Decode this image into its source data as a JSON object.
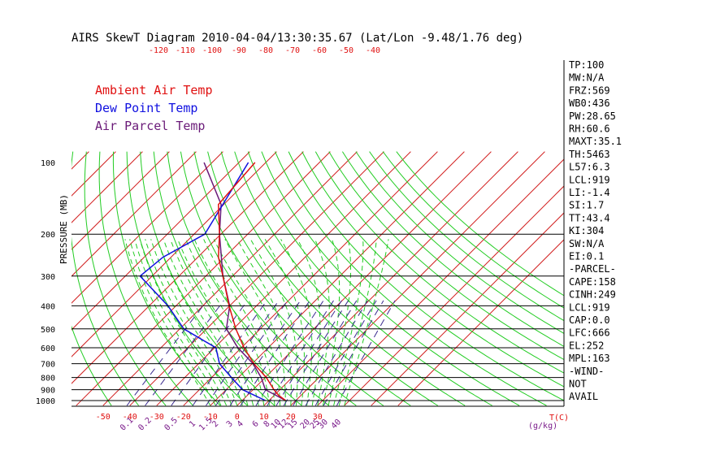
{
  "chart_data": {
    "type": "line",
    "title": "AIRS SkewT Diagram 2010-04-04/13:30:35.67 (Lat/Lon -9.48/1.76 deg)",
    "ylabel": "PRESSURE (MB)",
    "x_unit_label": "T(C)",
    "mixing_ratio_unit_label": "(g/kg)",
    "pressure_ticks": [
      "100",
      "200",
      "300",
      "400",
      "500",
      "600",
      "700",
      "800",
      "900",
      "1000"
    ],
    "pressure_lines": [
      200,
      300,
      400,
      500,
      600,
      700,
      800,
      900,
      1000
    ],
    "top_temp_ticks": [
      "-120",
      "-110",
      "-100",
      "-90",
      "-80",
      "-70",
      "-60",
      "-50",
      "-40"
    ],
    "bottom_temp_ticks": [
      "-50",
      "-40",
      "-30",
      "-20",
      "-10",
      "0",
      "10",
      "20",
      "30"
    ],
    "mixing_ratio_ticks": [
      "0.1",
      "0.2",
      "0.5",
      "1",
      "1.5",
      "2",
      "3",
      "4",
      "6",
      "8",
      "10",
      "12",
      "15",
      "20",
      "25",
      "30",
      "40"
    ],
    "colors": {
      "isotherm": "#d22020",
      "dry_adiabat": "#22cc22",
      "moist_adiabat": "#22cc22",
      "mixing_ratio": "#3a2a90",
      "temperature": "#e01010",
      "dewpoint": "#1010e0",
      "parcel": "#6a1a78",
      "tick_text": "#e01010",
      "mixing_text": "#7a1a8a"
    },
    "series": [
      {
        "name": "Ambient Air Temp",
        "points": [
          [
            -84.0,
            100
          ],
          [
            -82.0,
            150
          ],
          [
            -70.5,
            200
          ],
          [
            -62.3,
            250
          ],
          [
            -53.6,
            300
          ],
          [
            -40.2,
            400
          ],
          [
            -29.1,
            500
          ],
          [
            -19.0,
            600
          ],
          [
            -9.4,
            700
          ],
          [
            0.4,
            800
          ],
          [
            7.8,
            900
          ],
          [
            11.6,
            950
          ],
          [
            16.2,
            1000
          ]
        ]
      },
      {
        "name": "Dew Point Temp",
        "points": [
          [
            -86.5,
            100
          ],
          [
            -76.0,
            200
          ],
          [
            -83.0,
            250
          ],
          [
            -84.5,
            300
          ],
          [
            -63.0,
            400
          ],
          [
            -48.5,
            500
          ],
          [
            -29.5,
            600
          ],
          [
            -22.2,
            700
          ],
          [
            -12.6,
            800
          ],
          [
            -3.9,
            900
          ],
          [
            8.7,
            1000
          ]
        ]
      },
      {
        "name": "Air Parcel Temp",
        "points": [
          [
            -103.0,
            100
          ],
          [
            -81.0,
            150
          ],
          [
            -70.5,
            200
          ],
          [
            -53.6,
            300
          ],
          [
            -40.0,
            400
          ],
          [
            -32.6,
            500
          ],
          [
            -21.3,
            600
          ],
          [
            -9.7,
            700
          ],
          [
            -1.5,
            800
          ],
          [
            4.6,
            900
          ],
          [
            16.2,
            1000
          ]
        ]
      }
    ],
    "indices": [
      "TP:100",
      "MW:N/A",
      "FRZ:569",
      "WB0:436",
      "PW:28.65",
      "RH:60.6",
      "MAXT:35.1",
      "TH:5463",
      "L57:6.3",
      "LCL:919",
      "LI:-1.4",
      "SI:1.7",
      "TT:43.4",
      "KI:304",
      "SW:N/A",
      "EI:0.1",
      "-PARCEL-",
      "CAPE:158",
      "CINH:249",
      "LCL:919",
      "CAP:0.0",
      "LFC:666",
      "EL:252",
      "MPL:163",
      "-WIND-",
      "NOT",
      "AVAIL"
    ]
  }
}
